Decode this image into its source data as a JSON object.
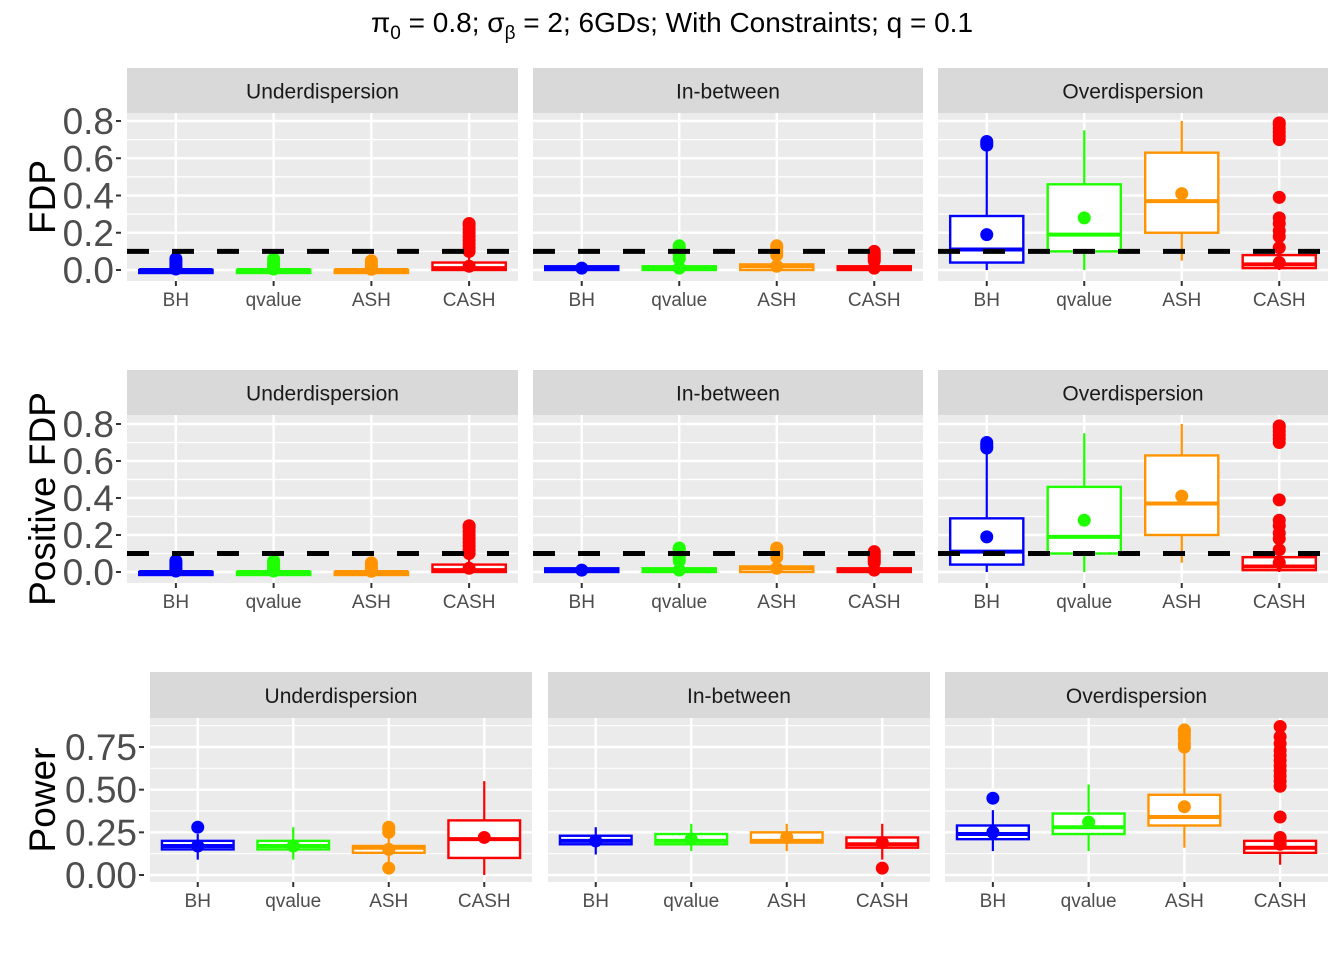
{
  "chart_data": {
    "type": "boxplot",
    "title": "π0 = 0.8; σβ = 2; 6GDs; With Constraints; q = 0.1",
    "title_parts": {
      "pi": "π",
      "pi_sub": "0",
      "pi_val": " = 0.8; ",
      "sigma": "σ",
      "sigma_sub": "β",
      "rest": " = 2; 6GDs; With Constraints; q = 0.1"
    },
    "methods": [
      "BH",
      "qvalue",
      "ASH",
      "CASH"
    ],
    "method_colors": {
      "BH": "#0000ff",
      "qvalue": "#1eff00",
      "ASH": "#ff9400",
      "CASH": "#ff0000"
    },
    "facets": [
      "Underdispersion",
      "In-between",
      "Overdispersion"
    ],
    "reference_line": {
      "value": 0.1,
      "style": "dashed",
      "color": "#000000",
      "rows": [
        "FDP",
        "Positive FDP"
      ]
    },
    "rows": [
      {
        "ylabel": "FDP",
        "ylim": [
          -0.03,
          0.85
        ],
        "yticks": [
          0.0,
          0.2,
          0.4,
          0.6,
          0.8
        ],
        "ytick_labels": [
          "0.0",
          "0.2",
          "0.4",
          "0.6",
          "0.8"
        ],
        "panels": [
          {
            "facet": "Underdispersion",
            "boxes": [
              {
                "method": "BH",
                "min": 0.0,
                "q1": 0.0,
                "median": 0.0,
                "q3": 0.0,
                "max": 0.0,
                "mean": 0.005,
                "outliers": [
                  0.01,
                  0.02,
                  0.03,
                  0.04,
                  0.05,
                  0.06
                ]
              },
              {
                "method": "qvalue",
                "min": 0.0,
                "q1": 0.0,
                "median": 0.0,
                "q3": 0.0,
                "max": 0.0,
                "mean": 0.005,
                "outliers": [
                  0.01,
                  0.02,
                  0.03,
                  0.04,
                  0.05,
                  0.06
                ]
              },
              {
                "method": "ASH",
                "min": 0.0,
                "q1": 0.0,
                "median": 0.0,
                "q3": 0.0,
                "max": 0.0,
                "mean": 0.004,
                "outliers": [
                  0.01,
                  0.02,
                  0.03,
                  0.04,
                  0.05
                ]
              },
              {
                "method": "CASH",
                "min": 0.0,
                "q1": 0.0,
                "median": 0.01,
                "q3": 0.04,
                "max": 0.09,
                "mean": 0.02,
                "outliers": [
                  0.1,
                  0.12,
                  0.14,
                  0.16,
                  0.18,
                  0.2,
                  0.22,
                  0.24,
                  0.25
                ]
              }
            ]
          },
          {
            "facet": "In-between",
            "boxes": [
              {
                "method": "BH",
                "min": 0.0,
                "q1": 0.0,
                "median": 0.01,
                "q3": 0.02,
                "max": 0.04,
                "mean": 0.01,
                "outliers": []
              },
              {
                "method": "qvalue",
                "min": 0.0,
                "q1": 0.0,
                "median": 0.01,
                "q3": 0.02,
                "max": 0.05,
                "mean": 0.01,
                "outliers": [
                  0.06,
                  0.08,
                  0.1,
                  0.12,
                  0.13
                ]
              },
              {
                "method": "ASH",
                "min": 0.0,
                "q1": 0.0,
                "median": 0.02,
                "q3": 0.03,
                "max": 0.06,
                "mean": 0.02,
                "outliers": [
                  0.08,
                  0.1,
                  0.12,
                  0.13
                ]
              },
              {
                "method": "CASH",
                "min": 0.0,
                "q1": 0.0,
                "median": 0.01,
                "q3": 0.02,
                "max": 0.04,
                "mean": 0.01,
                "outliers": [
                  0.05,
                  0.06,
                  0.07,
                  0.08,
                  0.09,
                  0.1
                ]
              }
            ]
          },
          {
            "facet": "Overdispersion",
            "boxes": [
              {
                "method": "BH",
                "min": 0.0,
                "q1": 0.04,
                "median": 0.11,
                "q3": 0.29,
                "max": 0.66,
                "mean": 0.19,
                "outliers": [
                  0.67,
                  0.68,
                  0.69
                ]
              },
              {
                "method": "qvalue",
                "min": 0.0,
                "q1": 0.1,
                "median": 0.19,
                "q3": 0.46,
                "max": 0.75,
                "mean": 0.28,
                "outliers": []
              },
              {
                "method": "ASH",
                "min": 0.05,
                "q1": 0.2,
                "median": 0.37,
                "q3": 0.63,
                "max": 0.8,
                "mean": 0.41,
                "outliers": []
              },
              {
                "method": "CASH",
                "min": 0.0,
                "q1": 0.01,
                "median": 0.03,
                "q3": 0.08,
                "max": 0.1,
                "mean": 0.04,
                "outliers": [
                  0.12,
                  0.18,
                  0.21,
                  0.25,
                  0.28,
                  0.39,
                  0.7,
                  0.72,
                  0.74,
                  0.76,
                  0.78,
                  0.79
                ]
              }
            ]
          }
        ]
      },
      {
        "ylabel": "Positive FDP",
        "ylim": [
          -0.03,
          0.85
        ],
        "yticks": [
          0.0,
          0.2,
          0.4,
          0.6,
          0.8
        ],
        "ytick_labels": [
          "0.0",
          "0.2",
          "0.4",
          "0.6",
          "0.8"
        ],
        "panels": [
          {
            "facet": "Underdispersion",
            "boxes": [
              {
                "method": "BH",
                "min": 0.0,
                "q1": 0.0,
                "median": 0.0,
                "q3": 0.0,
                "max": 0.0,
                "mean": 0.005,
                "outliers": [
                  0.01,
                  0.02,
                  0.03,
                  0.04,
                  0.05,
                  0.06
                ]
              },
              {
                "method": "qvalue",
                "min": 0.0,
                "q1": 0.0,
                "median": 0.0,
                "q3": 0.0,
                "max": 0.0,
                "mean": 0.005,
                "outliers": [
                  0.01,
                  0.02,
                  0.03,
                  0.04,
                  0.05,
                  0.06
                ]
              },
              {
                "method": "ASH",
                "min": 0.0,
                "q1": 0.0,
                "median": 0.0,
                "q3": 0.0,
                "max": 0.0,
                "mean": 0.004,
                "outliers": [
                  0.01,
                  0.02,
                  0.03,
                  0.04,
                  0.05
                ]
              },
              {
                "method": "CASH",
                "min": 0.0,
                "q1": 0.0,
                "median": 0.01,
                "q3": 0.04,
                "max": 0.09,
                "mean": 0.02,
                "outliers": [
                  0.1,
                  0.12,
                  0.14,
                  0.16,
                  0.18,
                  0.2,
                  0.22,
                  0.24,
                  0.25
                ]
              }
            ]
          },
          {
            "facet": "In-between",
            "boxes": [
              {
                "method": "BH",
                "min": 0.0,
                "q1": 0.0,
                "median": 0.01,
                "q3": 0.02,
                "max": 0.04,
                "mean": 0.01,
                "outliers": []
              },
              {
                "method": "qvalue",
                "min": 0.0,
                "q1": 0.0,
                "median": 0.01,
                "q3": 0.02,
                "max": 0.05,
                "mean": 0.01,
                "outliers": [
                  0.06,
                  0.08,
                  0.1,
                  0.12,
                  0.13
                ]
              },
              {
                "method": "ASH",
                "min": 0.0,
                "q1": 0.0,
                "median": 0.02,
                "q3": 0.03,
                "max": 0.06,
                "mean": 0.02,
                "outliers": [
                  0.08,
                  0.1,
                  0.12,
                  0.13
                ]
              },
              {
                "method": "CASH",
                "min": 0.0,
                "q1": 0.0,
                "median": 0.01,
                "q3": 0.02,
                "max": 0.04,
                "mean": 0.01,
                "outliers": [
                  0.05,
                  0.06,
                  0.07,
                  0.08,
                  0.09,
                  0.1,
                  0.11
                ]
              }
            ]
          },
          {
            "facet": "Overdispersion",
            "boxes": [
              {
                "method": "BH",
                "min": 0.0,
                "q1": 0.04,
                "median": 0.11,
                "q3": 0.29,
                "max": 0.66,
                "mean": 0.19,
                "outliers": [
                  0.67,
                  0.68,
                  0.69,
                  0.7
                ]
              },
              {
                "method": "qvalue",
                "min": 0.0,
                "q1": 0.1,
                "median": 0.19,
                "q3": 0.46,
                "max": 0.75,
                "mean": 0.28,
                "outliers": []
              },
              {
                "method": "ASH",
                "min": 0.05,
                "q1": 0.2,
                "median": 0.37,
                "q3": 0.63,
                "max": 0.8,
                "mean": 0.41,
                "outliers": []
              },
              {
                "method": "CASH",
                "min": 0.0,
                "q1": 0.01,
                "median": 0.03,
                "q3": 0.08,
                "max": 0.1,
                "mean": 0.05,
                "outliers": [
                  0.12,
                  0.18,
                  0.21,
                  0.25,
                  0.28,
                  0.39,
                  0.7,
                  0.72,
                  0.74,
                  0.76,
                  0.78,
                  0.79
                ]
              }
            ]
          }
        ]
      },
      {
        "ylabel": "Power",
        "ylim": [
          -0.04,
          0.92
        ],
        "yticks": [
          0.0,
          0.25,
          0.5,
          0.75
        ],
        "ytick_labels": [
          "0.00",
          "0.25",
          "0.50",
          "0.75"
        ],
        "panels": [
          {
            "facet": "Underdispersion",
            "boxes": [
              {
                "method": "BH",
                "min": 0.09,
                "q1": 0.15,
                "median": 0.17,
                "q3": 0.2,
                "max": 0.24,
                "mean": 0.17,
                "outliers": [
                  0.28
                ]
              },
              {
                "method": "qvalue",
                "min": 0.09,
                "q1": 0.15,
                "median": 0.17,
                "q3": 0.2,
                "max": 0.28,
                "mean": 0.17,
                "outliers": []
              },
              {
                "method": "ASH",
                "min": 0.07,
                "q1": 0.13,
                "median": 0.16,
                "q3": 0.17,
                "max": 0.23,
                "mean": 0.15,
                "outliers": [
                  0.04,
                  0.25,
                  0.27,
                  0.28
                ]
              },
              {
                "method": "CASH",
                "min": 0.0,
                "q1": 0.1,
                "median": 0.21,
                "q3": 0.32,
                "max": 0.55,
                "mean": 0.22,
                "outliers": []
              }
            ]
          },
          {
            "facet": "In-between",
            "boxes": [
              {
                "method": "BH",
                "min": 0.12,
                "q1": 0.18,
                "median": 0.2,
                "q3": 0.23,
                "max": 0.28,
                "mean": 0.2,
                "outliers": []
              },
              {
                "method": "qvalue",
                "min": 0.14,
                "q1": 0.18,
                "median": 0.2,
                "q3": 0.24,
                "max": 0.3,
                "mean": 0.21,
                "outliers": []
              },
              {
                "method": "ASH",
                "min": 0.14,
                "q1": 0.19,
                "median": 0.2,
                "q3": 0.25,
                "max": 0.3,
                "mean": 0.22,
                "outliers": []
              },
              {
                "method": "CASH",
                "min": 0.09,
                "q1": 0.16,
                "median": 0.18,
                "q3": 0.22,
                "max": 0.3,
                "mean": 0.19,
                "outliers": [
                  0.04
                ]
              }
            ]
          },
          {
            "facet": "Overdispersion",
            "boxes": [
              {
                "method": "BH",
                "min": 0.14,
                "q1": 0.21,
                "median": 0.24,
                "q3": 0.29,
                "max": 0.38,
                "mean": 0.25,
                "outliers": [
                  0.45
                ]
              },
              {
                "method": "qvalue",
                "min": 0.14,
                "q1": 0.24,
                "median": 0.28,
                "q3": 0.36,
                "max": 0.53,
                "mean": 0.31,
                "outliers": []
              },
              {
                "method": "ASH",
                "min": 0.16,
                "q1": 0.29,
                "median": 0.34,
                "q3": 0.47,
                "max": 0.73,
                "mean": 0.4,
                "outliers": [
                  0.75,
                  0.77,
                  0.8,
                  0.82,
                  0.84,
                  0.85
                ]
              },
              {
                "method": "CASH",
                "min": 0.06,
                "q1": 0.13,
                "median": 0.16,
                "q3": 0.2,
                "max": 0.21,
                "mean": 0.18,
                "outliers": [
                  0.22,
                  0.34,
                  0.52,
                  0.55,
                  0.58,
                  0.61,
                  0.64,
                  0.67,
                  0.7,
                  0.73,
                  0.77,
                  0.81,
                  0.87
                ]
              }
            ]
          }
        ]
      }
    ]
  }
}
